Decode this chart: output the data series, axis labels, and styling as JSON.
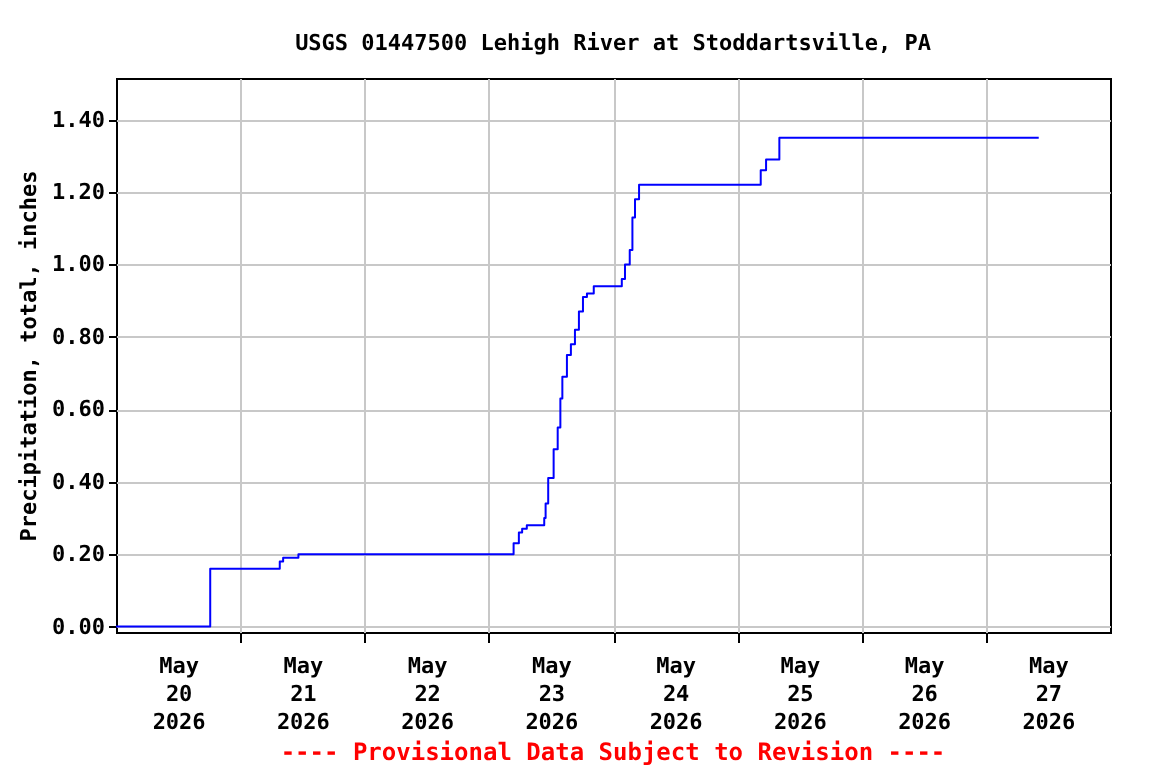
{
  "chart_data": {
    "type": "step",
    "title": "USGS 01447500 Lehigh River at Stoddartsville, PA",
    "ylabel": "Precipitation, total, inches",
    "annotations": [
      "---- Provisional Data Subject to Revision ----"
    ],
    "x": [
      "2026-05-20T00:00",
      "2026-05-20T18:12",
      "2026-05-21T07:00",
      "2026-05-21T07:38",
      "2026-05-21T08:17",
      "2026-05-21T11:14",
      "2026-05-23T03:45",
      "2026-05-23T04:48",
      "2026-05-23T05:49",
      "2026-05-23T06:27",
      "2026-05-23T07:21",
      "2026-05-23T09:40",
      "2026-05-23T10:43",
      "2026-05-23T10:59",
      "2026-05-23T11:29",
      "2026-05-23T12:32",
      "2026-05-23T13:19",
      "2026-05-23T13:50",
      "2026-05-23T14:13",
      "2026-05-23T15:06",
      "2026-05-23T15:52",
      "2026-05-23T16:39",
      "2026-05-23T17:25",
      "2026-05-23T18:12",
      "2026-05-23T18:58",
      "2026-05-23T20:17",
      "2026-05-24T00:46",
      "2026-05-24T01:42",
      "2026-05-24T02:19",
      "2026-05-24T03:14",
      "2026-05-24T03:45",
      "2026-05-24T04:15",
      "2026-05-24T05:02",
      "2026-05-25T03:29",
      "2026-05-25T04:32",
      "2026-05-25T05:34",
      "2026-05-25T07:22",
      "2026-05-25T08:08",
      "2026-05-27T10:14"
    ],
    "series": [
      {
        "color": "#0000ff",
        "values": [
          0,
          0.16,
          0.16,
          0.18,
          0.19,
          0.2,
          0.2,
          0.23,
          0.26,
          0.27,
          0.28,
          0.28,
          0.3,
          0.34,
          0.41,
          0.49,
          0.55,
          0.63,
          0.69,
          0.75,
          0.78,
          0.82,
          0.87,
          0.91,
          0.92,
          0.94,
          0.94,
          0.96,
          1.0,
          1.04,
          1.13,
          1.18,
          1.22,
          1.22,
          1.26,
          1.29,
          1.29,
          1.35,
          1.35
        ]
      }
    ],
    "xlim": [
      "2026-05-20T00:00",
      "2026-05-28T00:00"
    ],
    "xticks": [
      {
        "value": "2026-05-20T12:00",
        "label": "May\n20\n2026"
      },
      {
        "value": "2026-05-21T00:00",
        "label": null
      },
      {
        "value": "2026-05-21T12:00",
        "label": "May\n21\n2026"
      },
      {
        "value": "2026-05-22T00:00",
        "label": null
      },
      {
        "value": "2026-05-22T12:00",
        "label": "May\n22\n2026"
      },
      {
        "value": "2026-05-23T00:00",
        "label": null
      },
      {
        "value": "2026-05-23T12:00",
        "label": "May\n23\n2026"
      },
      {
        "value": "2026-05-24T00:00",
        "label": null
      },
      {
        "value": "2026-05-24T12:00",
        "label": "May\n24\n2026"
      },
      {
        "value": "2026-05-25T00:00",
        "label": null
      },
      {
        "value": "2026-05-25T12:00",
        "label": "May\n25\n2026"
      },
      {
        "value": "2026-05-26T00:00",
        "label": null
      },
      {
        "value": "2026-05-26T12:00",
        "label": "May\n26\n2026"
      },
      {
        "value": "2026-05-27T00:00",
        "label": null
      },
      {
        "value": "2026-05-27T12:00",
        "label": "May\n27\n2026"
      }
    ],
    "ylim": [
      -0.015,
      1.515
    ],
    "yticks": [
      {
        "value": 0,
        "label": "0.00"
      },
      {
        "value": 0.2,
        "label": "0.20"
      },
      {
        "value": 0.4,
        "label": "0.40"
      },
      {
        "value": 0.6,
        "label": "0.60"
      },
      {
        "value": 0.8,
        "label": "0.80"
      },
      {
        "value": 1.0,
        "label": "1.00"
      },
      {
        "value": 1.2,
        "label": "1.20"
      },
      {
        "value": 1.4,
        "label": "1.40"
      }
    ],
    "grid": true
  }
}
